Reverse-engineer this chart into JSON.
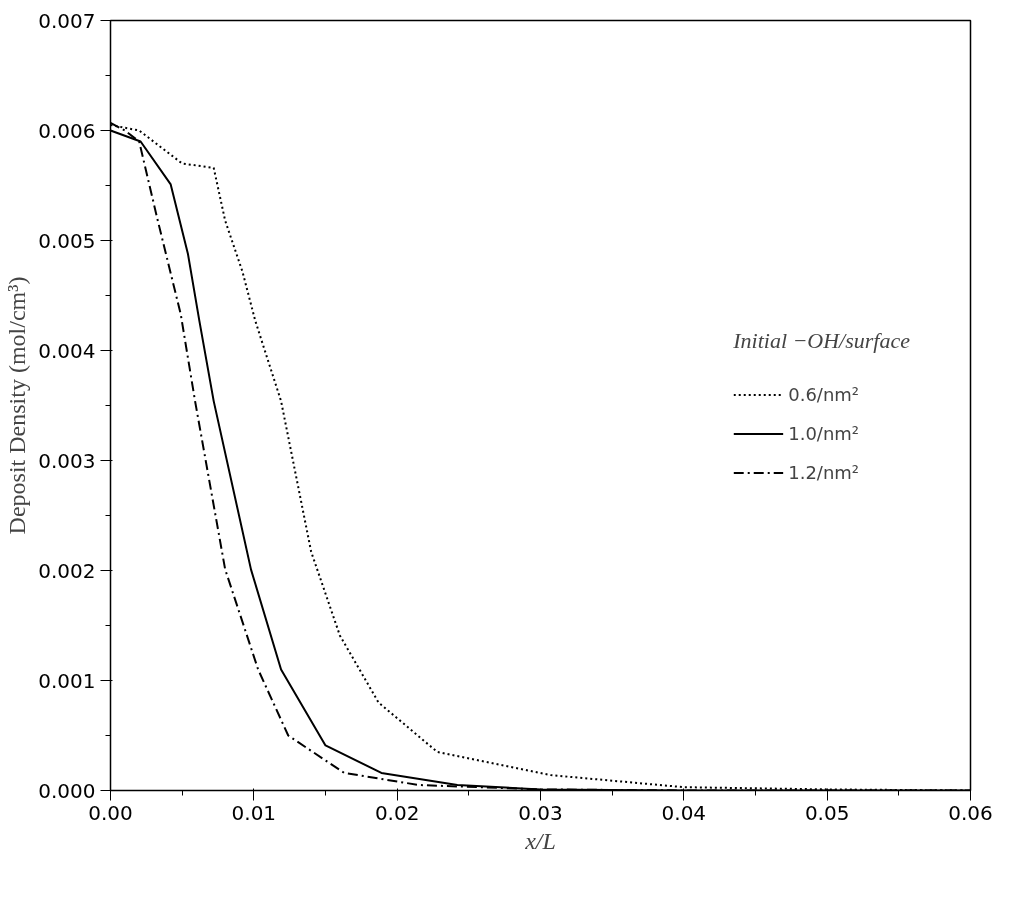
{
  "chart_data": {
    "type": "line",
    "xlabel": "x/L",
    "ylabel": "Deposit Density (mol/cm³)",
    "legend_title": "Initial −OH/surface",
    "legend": "right",
    "grid": false,
    "marker": "none",
    "xlim": [
      0,
      0.06
    ],
    "ylim": [
      0,
      0.007
    ],
    "xticks": [
      {
        "value": 0,
        "label": "0.00"
      },
      {
        "value": 0.01,
        "label": "0.01"
      },
      {
        "value": 0.02,
        "label": "0.02"
      },
      {
        "value": 0.03,
        "label": "0.03"
      },
      {
        "value": 0.04,
        "label": "0.04"
      },
      {
        "value": 0.05,
        "label": "0.05"
      },
      {
        "value": 0.06,
        "label": "0.06"
      }
    ],
    "yticks": [
      {
        "value": 0,
        "label": "0.000"
      },
      {
        "value": 0.001,
        "label": "0.001"
      },
      {
        "value": 0.002,
        "label": "0.002"
      },
      {
        "value": 0.003,
        "label": "0.003"
      },
      {
        "value": 0.004,
        "label": "0.004"
      },
      {
        "value": 0.005,
        "label": "0.005"
      },
      {
        "value": 0.006,
        "label": "0.006"
      },
      {
        "value": 0.007,
        "label": "0.007"
      }
    ],
    "series": [
      {
        "name": "0.6/nm²",
        "color": "#000000",
        "line_style": "dotted",
        "x": [
          0,
          0.002,
          0.004,
          0.005,
          0.0072,
          0.008,
          0.0092,
          0.0101,
          0.0119,
          0.014,
          0.016,
          0.0187,
          0.0228,
          0.0307,
          0.04,
          0.05,
          0.06
        ],
        "values": [
          0.00605,
          0.006,
          0.0058,
          0.0057,
          0.00566,
          0.00518,
          0.00472,
          0.00427,
          0.00354,
          0.00217,
          0.00141,
          0.0008,
          0.00035,
          0.00014,
          3e-05,
          1e-05,
          0
        ]
      },
      {
        "name": "1.0/nm²",
        "color": "#000000",
        "line_style": "solid",
        "x": [
          0,
          0.0021,
          0.0042,
          0.0054,
          0.0062,
          0.0072,
          0.0098,
          0.0119,
          0.015,
          0.0189,
          0.0242,
          0.03,
          0.04,
          0.06
        ],
        "values": [
          0.006,
          0.0059,
          0.00551,
          0.00488,
          0.00427,
          0.00354,
          0.00201,
          0.0011,
          0.00041,
          0.00016,
          5e-05,
          1e-05,
          0,
          0
        ]
      },
      {
        "name": "1.2/nm²",
        "color": "#000000",
        "line_style": "dashdot",
        "x": [
          0,
          0.001,
          0.002,
          0.0033,
          0.0049,
          0.0059,
          0.008,
          0.0103,
          0.0124,
          0.0163,
          0.0215,
          0.03,
          0.04,
          0.06
        ],
        "values": [
          0.00607,
          0.006,
          0.0059,
          0.00518,
          0.00433,
          0.00354,
          0.00201,
          0.0011,
          0.0005,
          0.00016,
          5e-05,
          1e-05,
          0,
          0
        ]
      }
    ]
  }
}
